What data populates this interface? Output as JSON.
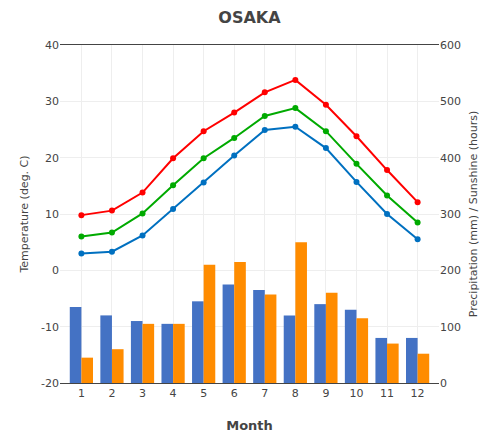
{
  "chart_data": {
    "type": "combo",
    "title": "OSAKA",
    "x_label": "Month",
    "y_label": "Temperature (deg. C)",
    "y2_label": "Precipitation (mm) / Sunshine (hours)",
    "x": [
      1,
      2,
      3,
      4,
      5,
      6,
      7,
      8,
      9,
      10,
      11,
      12
    ],
    "xlim": [
      0.3,
      12.7
    ],
    "xticks": [
      1,
      2,
      3,
      4,
      5,
      6,
      7,
      8,
      9,
      10,
      11,
      12
    ],
    "ylim": [
      -20,
      40
    ],
    "yticks": [
      -20,
      -10,
      0,
      10,
      20,
      30,
      40
    ],
    "y2lim": [
      0,
      600
    ],
    "y2ticks": [
      0,
      100,
      200,
      300,
      400,
      500,
      600
    ],
    "grid": true,
    "series": [
      {
        "type": "bar",
        "axis": "y2",
        "color": "#4472c4",
        "values": [
          135,
          120,
          110,
          105,
          145,
          175,
          165,
          120,
          140,
          130,
          80,
          80
        ]
      },
      {
        "type": "bar",
        "axis": "y2",
        "color": "#ff8c00",
        "values": [
          45,
          60,
          105,
          105,
          210,
          215,
          157,
          250,
          160,
          115,
          70,
          52
        ]
      },
      {
        "type": "line",
        "marker": "circle",
        "color": "#ff0000",
        "values": [
          9.8,
          10.6,
          13.8,
          19.9,
          24.7,
          28.0,
          31.6,
          33.8,
          29.4,
          23.8,
          17.8,
          12.1
        ]
      },
      {
        "type": "line",
        "marker": "circle",
        "color": "#00aa00",
        "values": [
          6.0,
          6.7,
          10.1,
          15.1,
          19.9,
          23.5,
          27.4,
          28.8,
          24.7,
          18.9,
          13.3,
          8.5
        ]
      },
      {
        "type": "line",
        "marker": "circle",
        "color": "#0070c0",
        "values": [
          3.0,
          3.3,
          6.2,
          10.9,
          15.6,
          20.4,
          24.9,
          25.5,
          21.7,
          15.7,
          10.0,
          5.5
        ]
      }
    ]
  }
}
